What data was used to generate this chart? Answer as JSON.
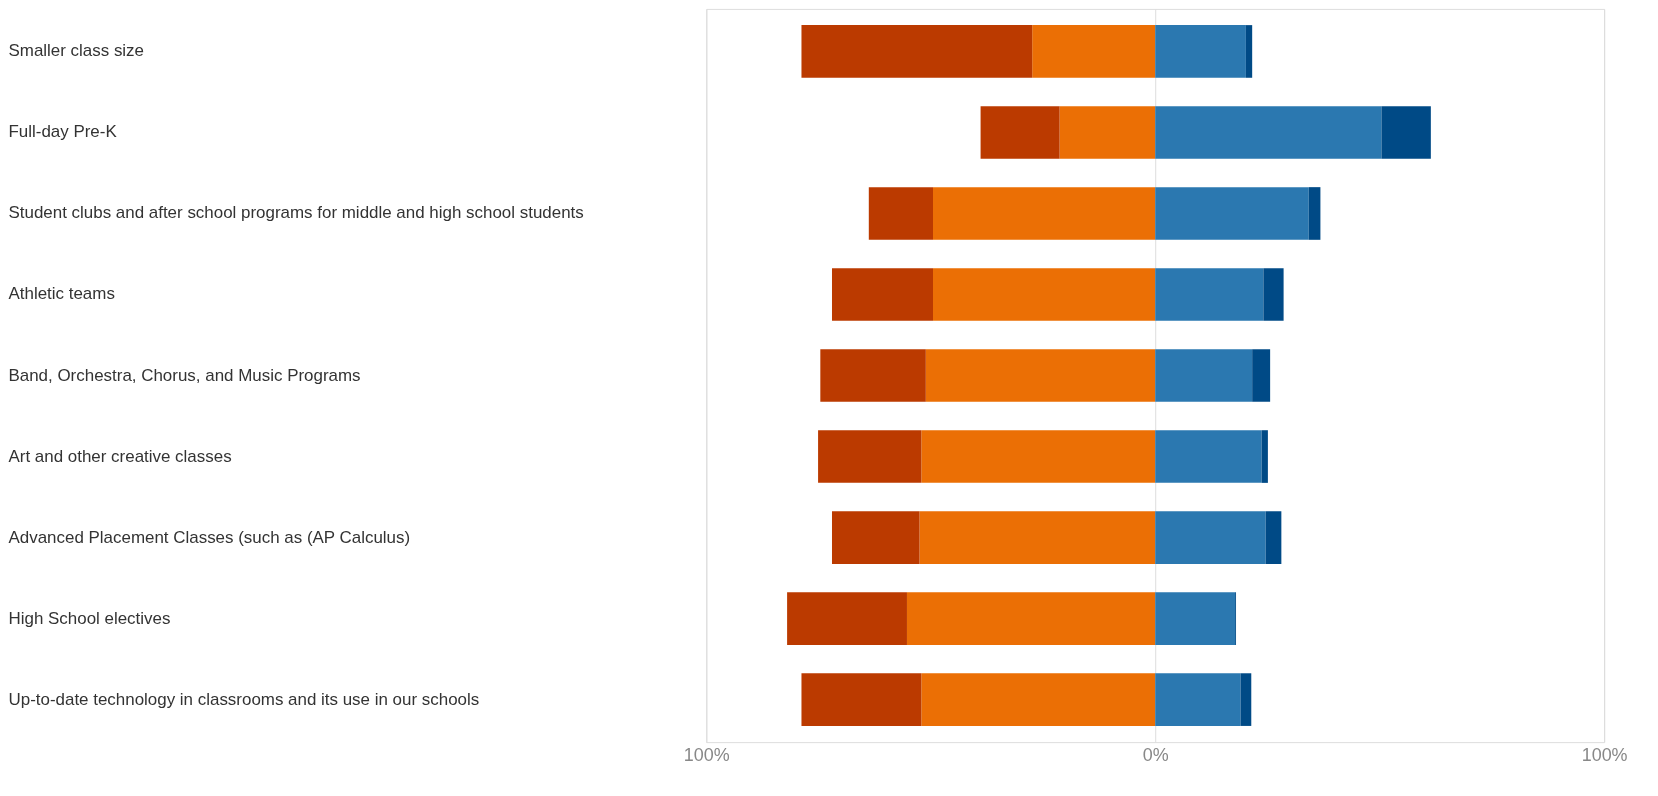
{
  "chart_data": {
    "type": "bar",
    "orientation": "horizontal",
    "stacked": true,
    "categories": [
      "Smaller class size",
      "Full-day Pre-K",
      "Student clubs and after school programs for middle and high school students",
      "Athletic teams",
      "Band, Orchestra, Chorus, and Music Programs",
      "Art and other creative classes",
      "Advanced Placement Classes (such as (AP Calculus)",
      "High School electives",
      "Up-to-date technology in classrooms and its use in our schools"
    ],
    "series": [
      {
        "color": "#eb6f05",
        "values": [
          -27.4,
          -21.3,
          -49.5,
          -49.5,
          -51.1,
          -52.1,
          -52.5,
          -55.3,
          -52.1
        ]
      },
      {
        "color": "#bb3a00",
        "values": [
          -51.4,
          -17.6,
          -14.3,
          -22.5,
          -23.5,
          -23.0,
          -19.5,
          -26.7,
          -26.7
        ]
      },
      {
        "color": "#2b78b0",
        "values": [
          20.2,
          50.4,
          34.2,
          24.1,
          21.6,
          23.7,
          24.6,
          17.8,
          19.0
        ]
      },
      {
        "color": "#004a86",
        "values": [
          1.4,
          11.0,
          2.6,
          4.5,
          4.0,
          1.4,
          3.5,
          0.2,
          2.4
        ]
      }
    ],
    "xlim": [
      -100,
      100
    ],
    "xticks": [
      {
        "value": -100,
        "label": "100%"
      },
      {
        "value": 0,
        "label": "0%"
      },
      {
        "value": 100,
        "label": "100%"
      }
    ],
    "grid": "x"
  }
}
